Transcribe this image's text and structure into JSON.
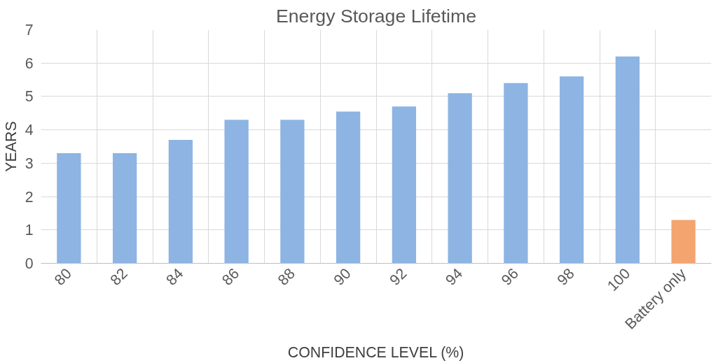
{
  "chart_data": {
    "type": "bar",
    "title": "Energy Storage Lifetime",
    "xlabel": "CONFIDENCE LEVEL (%)",
    "ylabel": "YEARS",
    "categories": [
      "80",
      "82",
      "84",
      "86",
      "88",
      "90",
      "92",
      "94",
      "96",
      "98",
      "100",
      "Battery only"
    ],
    "values": [
      3.3,
      3.3,
      3.7,
      4.3,
      4.3,
      4.55,
      4.7,
      5.1,
      5.4,
      5.6,
      6.2,
      1.3
    ],
    "colors": [
      "#8db4e2",
      "#8db4e2",
      "#8db4e2",
      "#8db4e2",
      "#8db4e2",
      "#8db4e2",
      "#8db4e2",
      "#8db4e2",
      "#8db4e2",
      "#8db4e2",
      "#8db4e2",
      "#f4a46f"
    ],
    "ylim": [
      0,
      7
    ],
    "yticks": [
      0,
      1,
      2,
      3,
      4,
      5,
      6,
      7
    ],
    "grid": true
  }
}
